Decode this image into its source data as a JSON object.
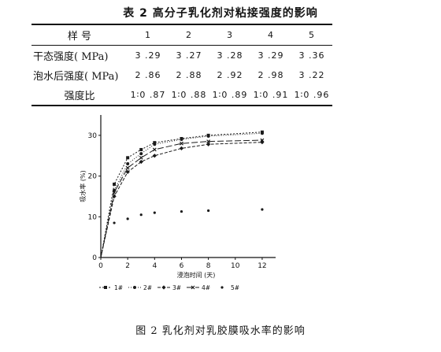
{
  "table": {
    "title": "表 2    高分子乳化剂对粘接强度的影响",
    "header": [
      "样  号",
      "1",
      "2",
      "3",
      "4",
      "5"
    ],
    "rows": [
      {
        "label": "干态强度( MPa)",
        "values": [
          "3 .29",
          "3 .27",
          "3 .28",
          "3 .29",
          "3 .36"
        ]
      },
      {
        "label": "泡水后强度( MPa)",
        "values": [
          "2 .86",
          "2 .88",
          "2 .92",
          "2 .98",
          "3 .22"
        ]
      },
      {
        "label": "强度比",
        "values": [
          "1∶0 .87",
          "1∶0 .88",
          "1∶0 .89",
          "1∶0 .91",
          "1∶0 .96"
        ]
      }
    ]
  },
  "chart_data": {
    "type": "line",
    "xlabel": "浸泡时间 (天)",
    "ylabel": "吸水率 (%)",
    "xlim": [
      0,
      13
    ],
    "ylim": [
      0,
      35
    ],
    "xticks": [
      0,
      2,
      4,
      6,
      8,
      10,
      12
    ],
    "yticks": [
      0,
      10,
      20,
      30
    ],
    "grid": false,
    "legend_position": "bottom",
    "series": [
      {
        "name": "1#",
        "color": "#1a1a1a",
        "dash": "2,2",
        "marker": "square",
        "x": [
          0,
          1,
          2,
          3,
          4,
          6,
          8,
          12
        ],
        "y": [
          0,
          18,
          24.5,
          26.5,
          28.2,
          29.2,
          30,
          30.8
        ]
      },
      {
        "name": "2#",
        "color": "#1a1a1a",
        "dash": "1,2",
        "marker": "circle",
        "x": [
          0,
          1,
          2,
          3,
          4,
          6,
          8,
          12
        ],
        "y": [
          0,
          16.5,
          23,
          25.5,
          27.8,
          29,
          29.8,
          30.5
        ]
      },
      {
        "name": "3#",
        "color": "#1a1a1a",
        "dash": "4,2",
        "marker": "diamond",
        "x": [
          0,
          1,
          2,
          3,
          4,
          6,
          8,
          12
        ],
        "y": [
          0,
          15,
          21,
          23.5,
          25,
          26.8,
          27.8,
          28.3
        ]
      },
      {
        "name": "4#",
        "color": "#1a1a1a",
        "dash": "8,3",
        "marker": "cross",
        "x": [
          0,
          1,
          2,
          3,
          4,
          6,
          8,
          12
        ],
        "y": [
          0,
          16,
          22,
          24.5,
          26.5,
          28,
          28.5,
          28.8
        ]
      },
      {
        "name": "5#",
        "color": "#1a1a1a",
        "dash": "none",
        "marker": "dot",
        "x": [
          0,
          1,
          2,
          3,
          4,
          6,
          8,
          12
        ],
        "y": [
          0,
          8.5,
          9.5,
          10.5,
          11,
          11.3,
          11.5,
          11.8
        ]
      }
    ]
  },
  "figure": {
    "caption": "图 2    乳化剂对乳胶膜吸水率的影响"
  }
}
